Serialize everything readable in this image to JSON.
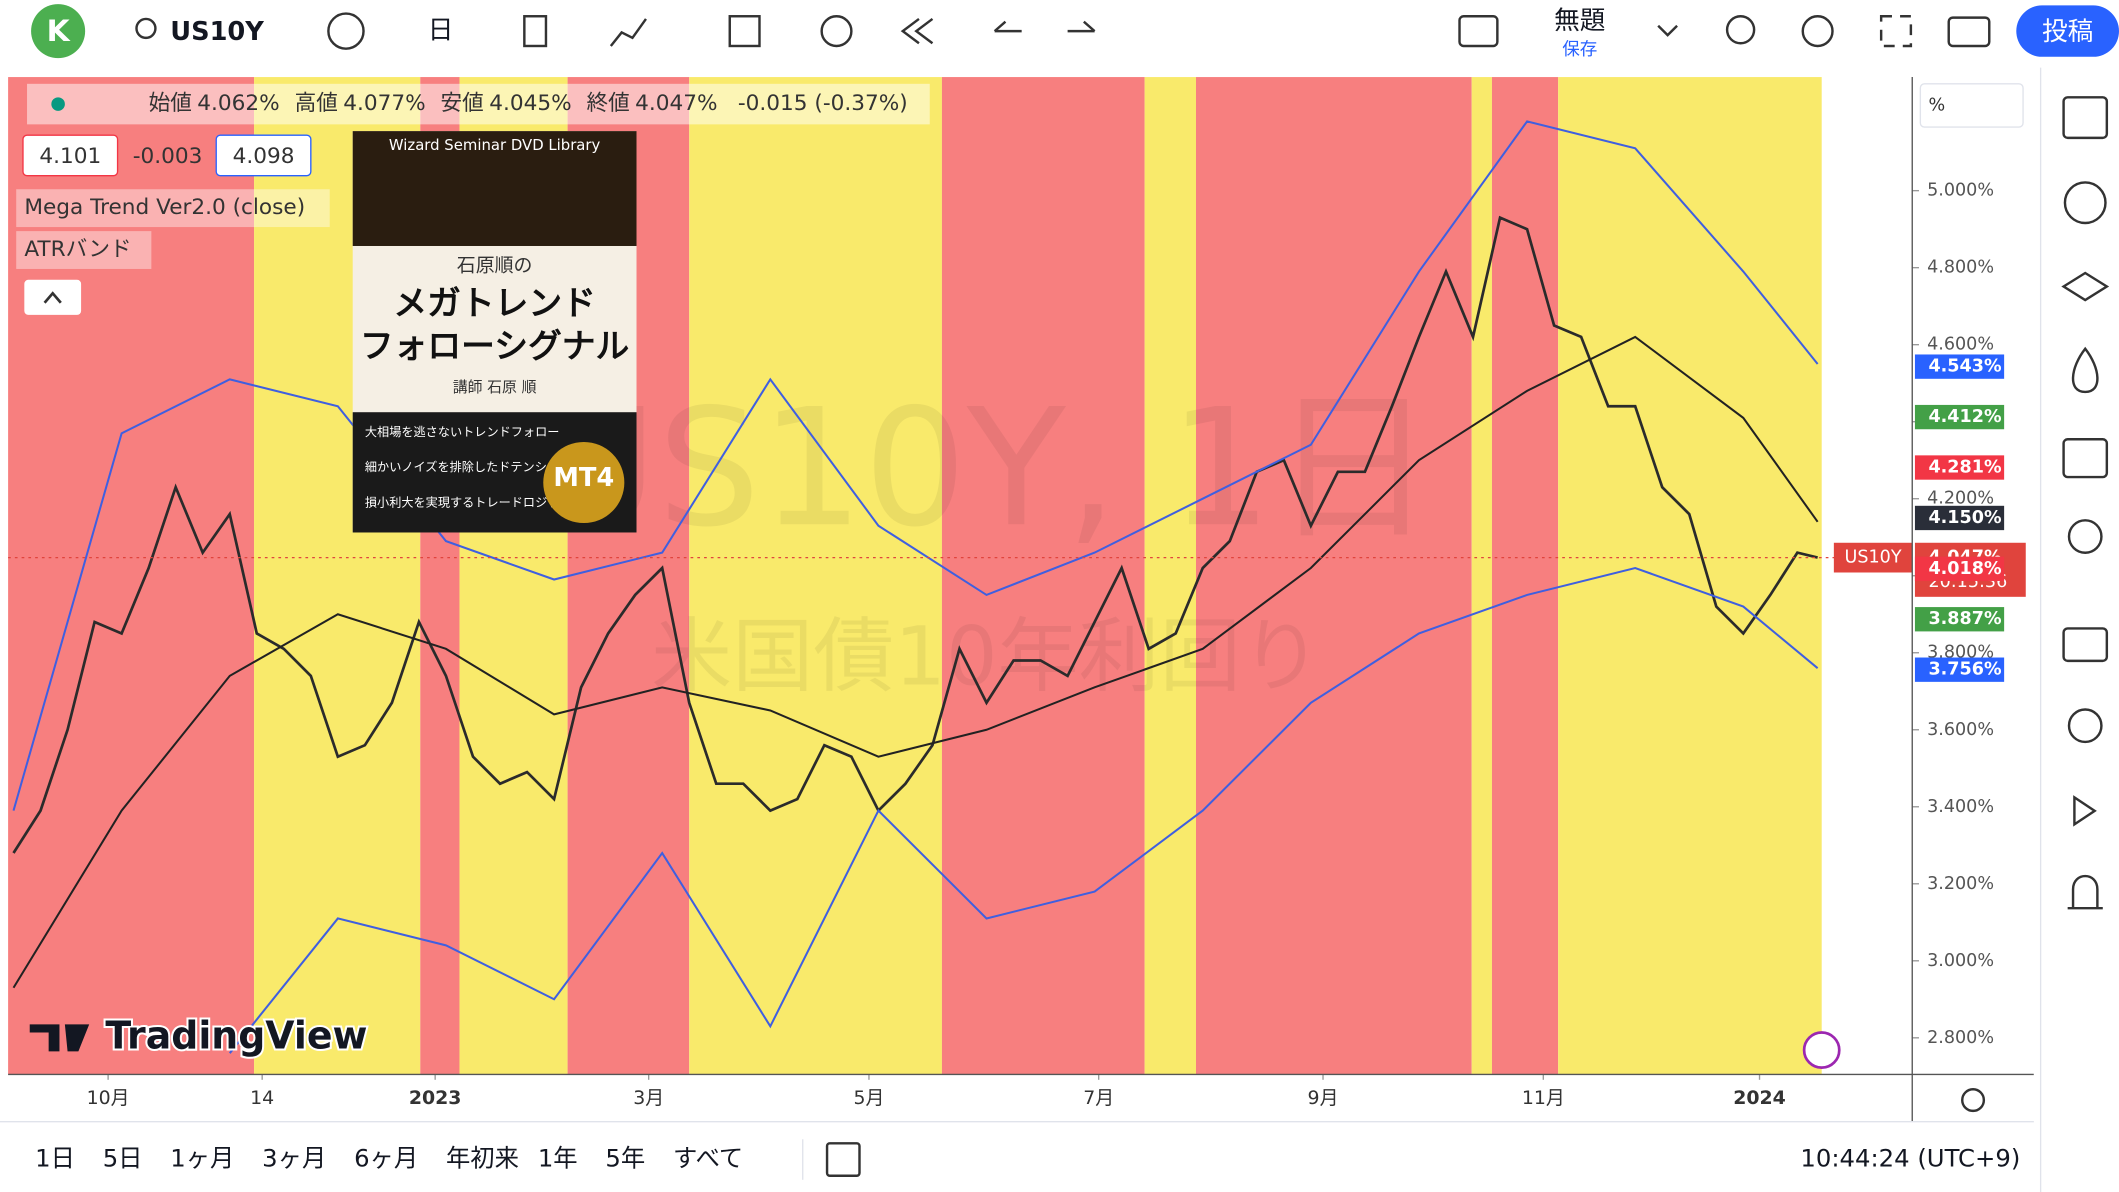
{
  "toolbar": {
    "avatar": "K",
    "symbol": "US10Y",
    "interval": "日",
    "layout_name": "無題",
    "save": "保存",
    "publish": "投稿"
  },
  "legend": {
    "open_label": "始値",
    "open": "4.062%",
    "high_label": "高値",
    "high": "4.077%",
    "low_label": "安値",
    "low": "4.045%",
    "close_label": "終値",
    "close": "4.047%",
    "change": "-0.015 (-0.37%)",
    "bid": "4.101",
    "spread": "-0.003",
    "ask": "4.098",
    "indicator_1": "Mega Trend Ver2.0 (close)",
    "indicator_2": "ATRバンド"
  },
  "ad": {
    "header": "Wizard Seminar DVD Library",
    "subtitle": "石原順の",
    "title_1": "メガトレンド",
    "title_2": "フォローシグナル",
    "lecturer": "講師 石原 順",
    "points": [
      "大相場を逃さないトレンドフォロー",
      "細かいノイズを排除したドテンシステムを採用",
      "損小利大を実現するトレードロジック"
    ],
    "badge": "MT4"
  },
  "watermark": {
    "symbol": "US10Y, 1日",
    "name": "米国債10年利回り"
  },
  "logo": "TradingView",
  "axis_unit": "%",
  "chart_data": {
    "type": "line",
    "xlim": [
      -0.2,
      70.25
    ],
    "ylim": [
      2.705,
      5.295
    ],
    "xticks": [
      {
        "value": 3.5,
        "label": "10月"
      },
      {
        "value": 9.2,
        "label": "14"
      },
      {
        "value": 15.6,
        "label": "2023"
      },
      {
        "value": 23.5,
        "label": "3月"
      },
      {
        "value": 31.65,
        "label": "5月"
      },
      {
        "value": 40.15,
        "label": "7月"
      },
      {
        "value": 48.45,
        "label": "9月"
      },
      {
        "value": 56.6,
        "label": "11月"
      },
      {
        "value": 64.6,
        "label": "2024"
      }
    ],
    "yticks": [
      {
        "value": 2.8,
        "label": "2.800%"
      },
      {
        "value": 3.0,
        "label": "3.000%"
      },
      {
        "value": 3.2,
        "label": "3.200%"
      },
      {
        "value": 3.4,
        "label": "3.400%"
      },
      {
        "value": 3.6,
        "label": "3.600%"
      },
      {
        "value": 3.8,
        "label": "3.800%"
      },
      {
        "value": 4.0,
        "label": "4.000%"
      },
      {
        "value": 4.2,
        "label": "4.200%"
      },
      {
        "value": 4.4,
        "label": "4.400%"
      },
      {
        "value": 4.6,
        "label": "4.600%"
      },
      {
        "value": 4.8,
        "label": "4.800%"
      },
      {
        "value": 5.0,
        "label": "5.000%"
      }
    ],
    "series": [
      {
        "color": "#2b2b2b",
        "x": [
          0,
          1,
          2,
          3,
          4,
          5,
          6,
          7,
          8,
          9,
          10,
          11,
          12,
          13,
          14,
          15,
          16,
          17,
          18,
          19,
          20,
          21,
          22,
          23,
          24,
          25,
          26,
          27,
          28,
          29,
          30,
          31,
          32,
          33,
          34,
          35,
          36,
          37,
          38,
          39,
          40,
          41,
          42,
          43,
          44,
          45,
          46,
          47,
          48,
          49,
          50,
          51,
          52,
          53,
          54,
          55,
          56,
          57,
          58,
          59,
          60,
          61,
          62,
          63,
          64,
          65,
          66,
          66.75
        ],
        "values": [
          3.28,
          3.39,
          3.6,
          3.88,
          3.85,
          4.02,
          4.23,
          4.06,
          4.16,
          3.85,
          3.81,
          3.74,
          3.53,
          3.56,
          3.67,
          3.88,
          3.74,
          3.53,
          3.46,
          3.49,
          3.42,
          3.71,
          3.85,
          3.95,
          4.02,
          3.67,
          3.46,
          3.46,
          3.39,
          3.42,
          3.56,
          3.53,
          3.39,
          3.46,
          3.56,
          3.81,
          3.67,
          3.78,
          3.78,
          3.74,
          3.88,
          4.02,
          3.81,
          3.85,
          4.02,
          4.09,
          4.27,
          4.3,
          4.13,
          4.27,
          4.27,
          4.44,
          4.62,
          4.79,
          4.62,
          4.93,
          4.9,
          4.65,
          4.62,
          4.44,
          4.44,
          4.23,
          4.16,
          3.92,
          3.85,
          3.95,
          4.06,
          4.047
        ]
      },
      {
        "color": "#222222",
        "x": [
          0,
          4,
          8,
          12,
          16,
          20,
          24,
          28,
          32,
          36,
          40,
          44,
          48,
          52,
          56,
          60,
          64,
          66.75
        ],
        "values": [
          2.93,
          3.39,
          3.74,
          3.9,
          3.81,
          3.64,
          3.71,
          3.65,
          3.53,
          3.6,
          3.71,
          3.81,
          4.02,
          4.3,
          4.48,
          4.62,
          4.41,
          4.14
        ]
      },
      {
        "color": "#3f5fe0",
        "x": [
          0,
          4,
          8,
          12,
          16,
          20,
          24,
          28,
          32,
          36,
          40,
          44,
          48,
          52,
          56,
          60,
          64,
          66.75
        ],
        "values": [
          3.39,
          4.37,
          4.51,
          4.44,
          4.09,
          3.99,
          4.06,
          4.51,
          4.13,
          3.95,
          4.06,
          4.2,
          4.34,
          4.79,
          5.18,
          5.11,
          4.79,
          4.55
        ]
      },
      {
        "color": "#3f5fe0",
        "x": [
          0,
          4,
          8,
          12,
          16,
          20,
          24,
          28,
          32,
          36,
          40,
          44,
          48,
          52,
          56,
          60,
          64,
          66.75
        ],
        "values": [
          null,
          null,
          2.76,
          3.11,
          3.04,
          2.9,
          3.28,
          2.83,
          3.39,
          3.11,
          3.18,
          3.39,
          3.67,
          3.85,
          3.95,
          4.02,
          3.92,
          3.76
        ]
      }
    ],
    "price_badges": [
      {
        "value": 4.543,
        "label": "4.543%",
        "color": "#2962ff"
      },
      {
        "value": 4.412,
        "label": "4.412%",
        "color": "#43a047"
      },
      {
        "value": 4.281,
        "label": "4.281%",
        "color": "#f23645"
      },
      {
        "value": 4.15,
        "label": "4.150%",
        "color": "#2a2e39"
      },
      {
        "value": 4.018,
        "label": "4.018%",
        "color": "#f23645"
      },
      {
        "value": 3.887,
        "label": "3.887%",
        "color": "#43a047"
      },
      {
        "value": 3.756,
        "label": "3.756%",
        "color": "#2962ff"
      }
    ],
    "last_price": {
      "value": 4.047,
      "symbol": "US10Y",
      "label": "4.047%",
      "countdown": "20:15:36",
      "color": "#e0443d"
    }
  },
  "ranges": [
    "1日",
    "5日",
    "1ヶ月",
    "3ヶ月",
    "6ヶ月",
    "年初来",
    "1年",
    "5年",
    "すべて"
  ],
  "clock": "10:44:24 (UTC+9)"
}
